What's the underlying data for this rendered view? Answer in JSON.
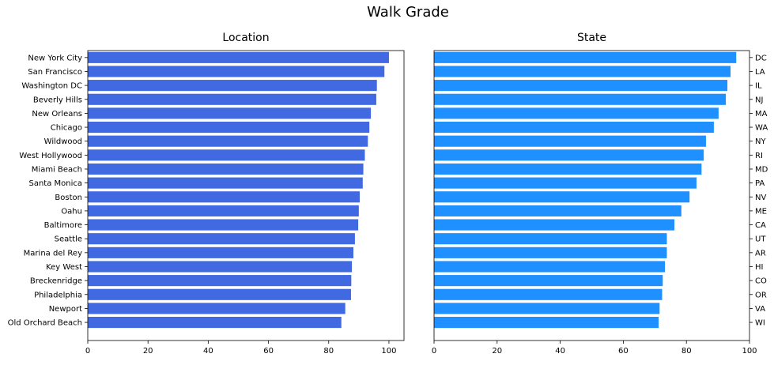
{
  "figure": {
    "title": "Walk Grade"
  },
  "chart_data": [
    {
      "type": "bar",
      "orientation": "horizontal",
      "title": "Location",
      "color": "#4169e1",
      "y_tick_side": "left",
      "xlim": [
        0,
        105
      ],
      "x_ticks": [
        0,
        20,
        40,
        60,
        80,
        100
      ],
      "categories": [
        "New York City",
        "San Francisco",
        "Washington DC",
        "Beverly Hills",
        "New Orleans",
        "Chicago",
        "Wildwood",
        "West Hollywood",
        "Miami Beach",
        "Santa Monica",
        "Boston",
        "Oahu",
        "Baltimore",
        "Seattle",
        "Marina del Rey",
        "Key West",
        "Breckenridge",
        "Philadelphia",
        "Newport",
        "Old Orchard Beach"
      ],
      "values": [
        100,
        98.5,
        96,
        95.8,
        94,
        93.5,
        93,
        92,
        91.5,
        91.3,
        90.3,
        90,
        89.8,
        88.7,
        88.2,
        87.7,
        87.5,
        87.4,
        85.5,
        84.2
      ]
    },
    {
      "type": "bar",
      "orientation": "horizontal",
      "title": "State",
      "color": "#1e90ff",
      "y_tick_side": "right",
      "xlim": [
        0,
        100
      ],
      "x_ticks": [
        0,
        20,
        40,
        60,
        80,
        100
      ],
      "categories": [
        "DC",
        "LA",
        "IL",
        "NJ",
        "MA",
        "WA",
        "NY",
        "RI",
        "MD",
        "PA",
        "NV",
        "ME",
        "CA",
        "UT",
        "AR",
        "HI",
        "CO",
        "OR",
        "VA",
        "WI"
      ],
      "values": [
        95.8,
        94,
        93,
        92.5,
        90.2,
        88.7,
        86.2,
        85.5,
        84.8,
        83.2,
        81,
        78.4,
        76.2,
        73.8,
        73.8,
        73.2,
        72.5,
        72.3,
        71.5,
        71.2
      ]
    }
  ]
}
